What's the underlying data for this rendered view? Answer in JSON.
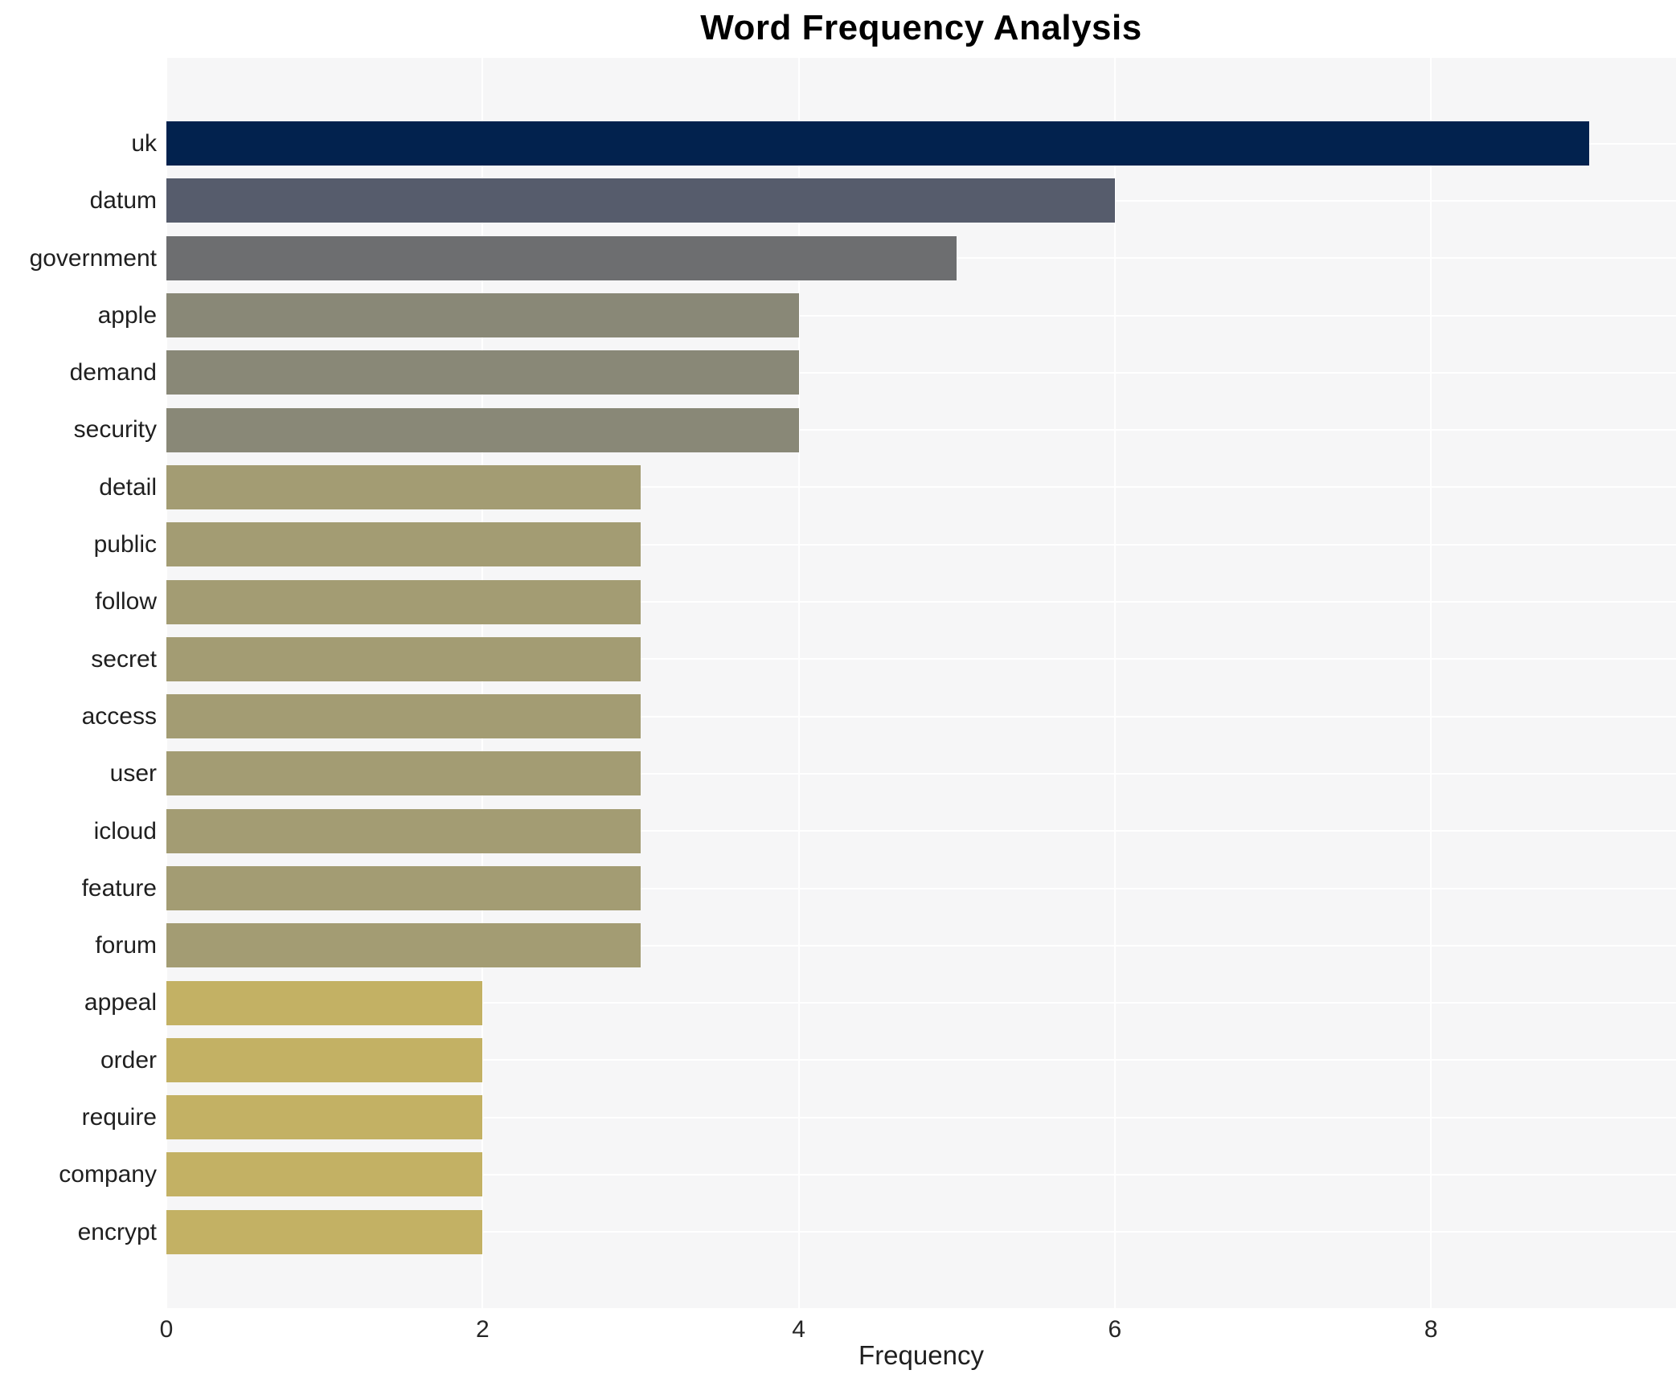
{
  "chart_data": {
    "type": "bar",
    "orientation": "horizontal",
    "title": "Word Frequency Analysis",
    "xlabel": "Frequency",
    "ylabel": "",
    "categories": [
      "uk",
      "datum",
      "government",
      "apple",
      "demand",
      "security",
      "detail",
      "public",
      "follow",
      "secret",
      "access",
      "user",
      "icloud",
      "feature",
      "forum",
      "appeal",
      "order",
      "require",
      "company",
      "encrypt"
    ],
    "values": [
      9,
      6,
      5,
      4,
      4,
      4,
      3,
      3,
      3,
      3,
      3,
      3,
      3,
      3,
      3,
      2,
      2,
      2,
      2,
      2
    ],
    "bar_colors": [
      "#02224e",
      "#565c6c",
      "#6d6e70",
      "#898877",
      "#898877",
      "#898877",
      "#a39c73",
      "#a39c73",
      "#a39c73",
      "#a39c73",
      "#a39c73",
      "#a39c73",
      "#a39c73",
      "#a39c73",
      "#a39c73",
      "#c3b164",
      "#c3b164",
      "#c3b164",
      "#c3b164",
      "#c3b164"
    ],
    "xticks": [
      0,
      2,
      4,
      6,
      8
    ],
    "xlim": [
      0,
      9.55
    ],
    "grid": "on",
    "legend": "none",
    "colors": {
      "plot_background": "#f6f6f7",
      "gridline": "#ffffff",
      "text": "#1f1f1f",
      "title": "#000000"
    }
  }
}
